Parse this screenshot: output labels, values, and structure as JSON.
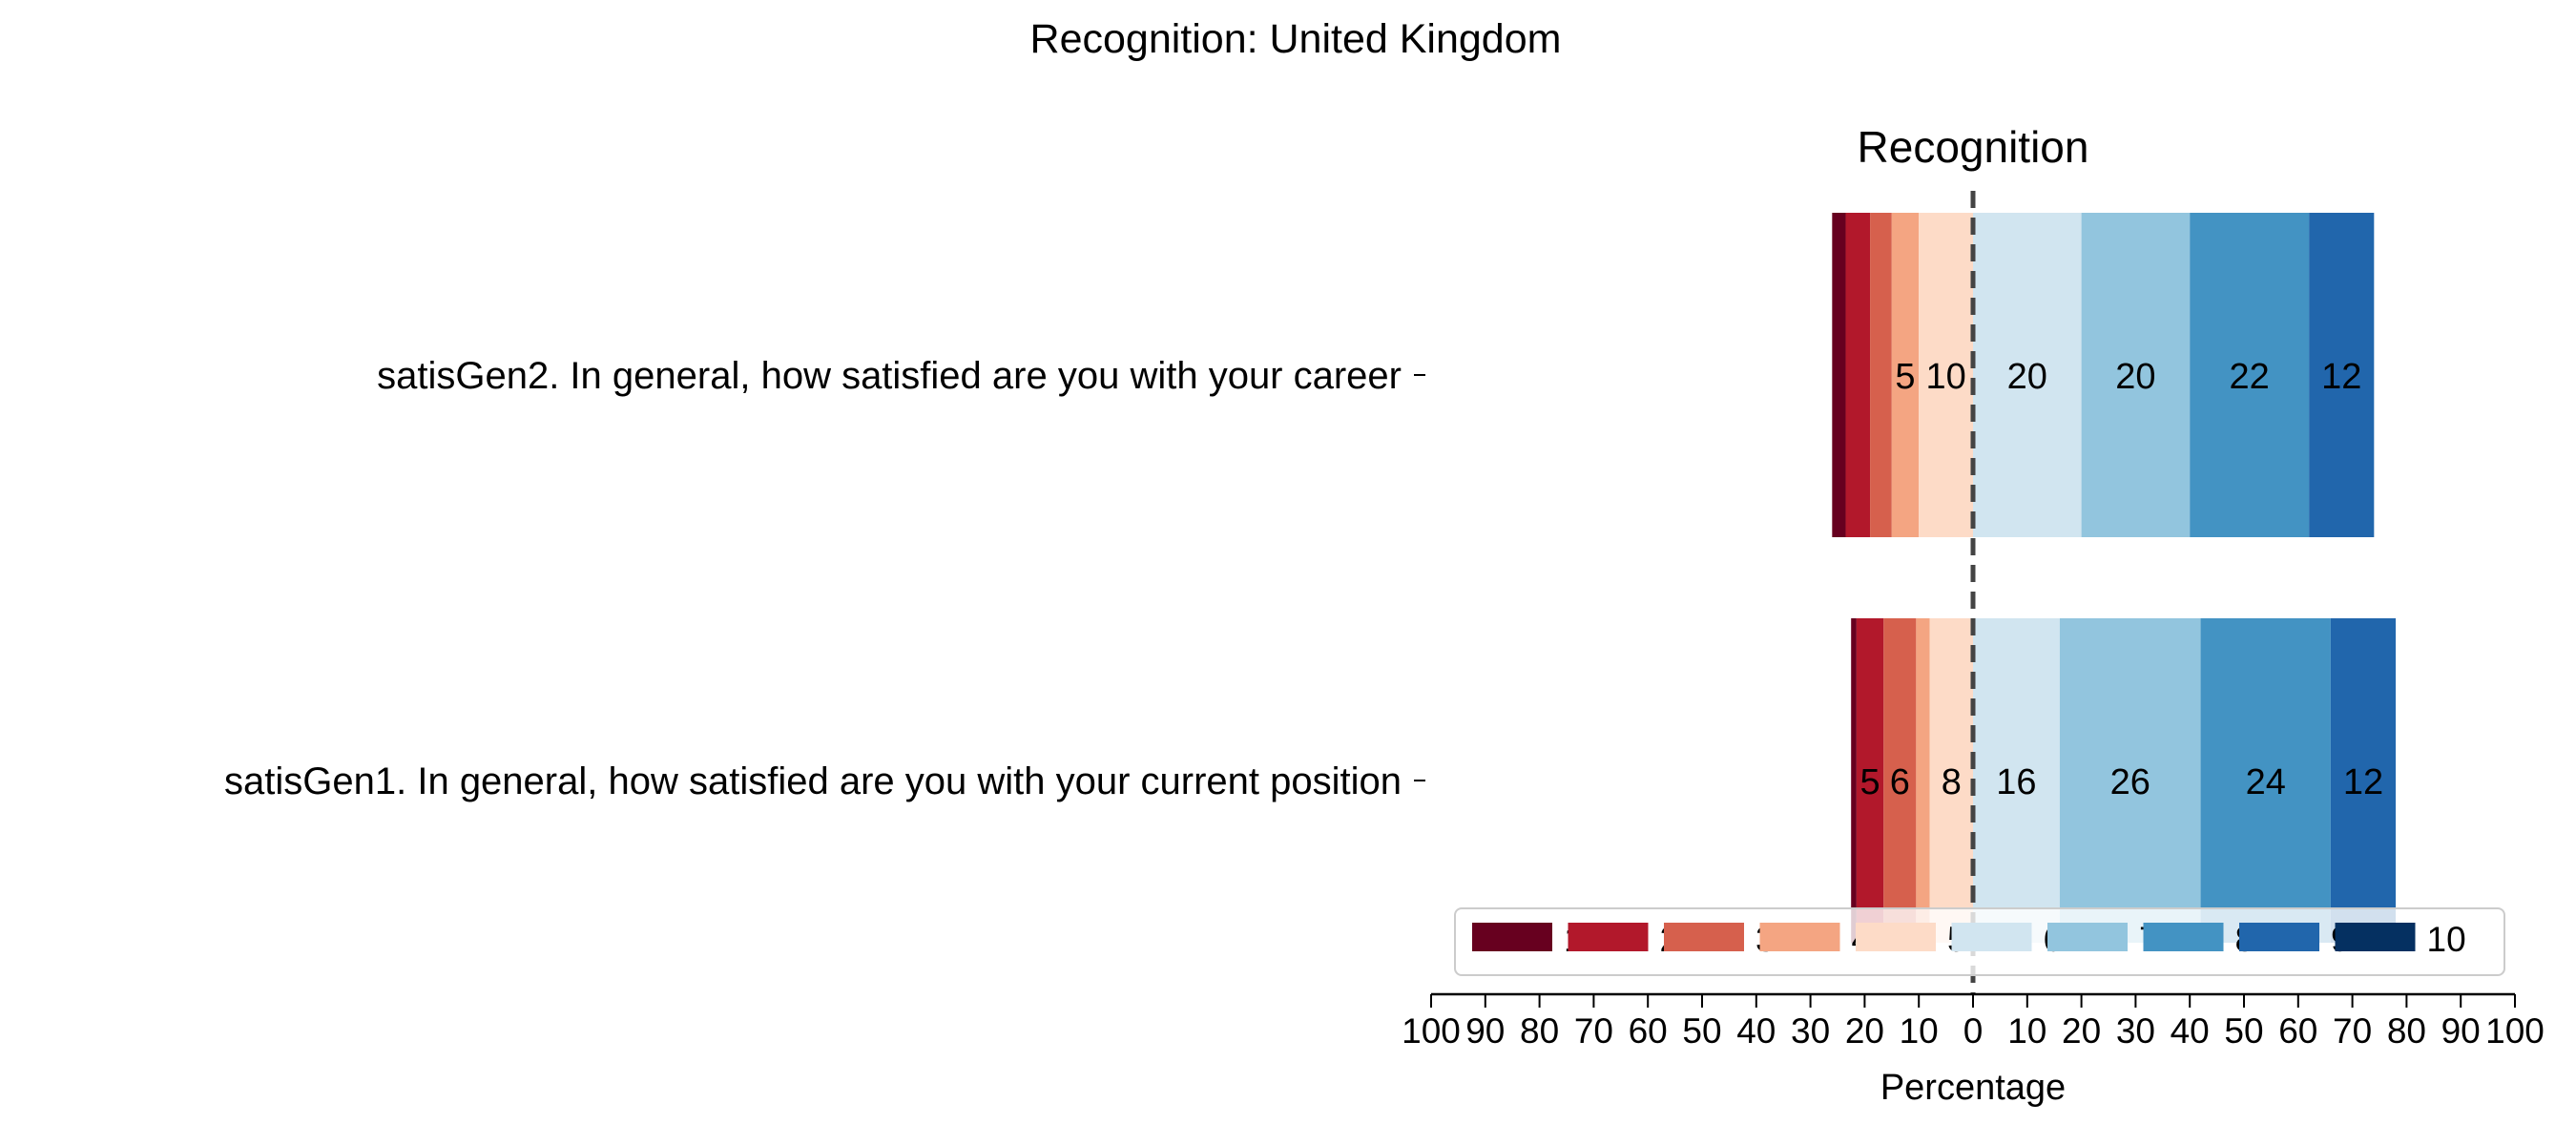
{
  "chart_data": {
    "type": "bar",
    "orientation": "horizontal",
    "stacked": "diverging",
    "title": "Recognition: United Kingdom",
    "subtitle": "Recognition",
    "xlabel": "Percentage",
    "xlim": [
      -100,
      100
    ],
    "x_ticks": [
      -100,
      -90,
      -80,
      -70,
      -60,
      -50,
      -40,
      -30,
      -20,
      -10,
      0,
      10,
      20,
      30,
      40,
      50,
      60,
      70,
      80,
      90,
      100
    ],
    "x_tick_labels": [
      "100",
      "90",
      "80",
      "70",
      "60",
      "50",
      "40",
      "30",
      "20",
      "10",
      "0",
      "10",
      "20",
      "30",
      "40",
      "50",
      "60",
      "70",
      "80",
      "90",
      "100"
    ],
    "categories": [
      "satisGen2. In general, how satisfied are you with your career",
      "satisGen1. In general, how satisfied are you with your current position"
    ],
    "series": [
      {
        "name": "1",
        "color": "#67001f",
        "values": [
          2.5,
          1
        ]
      },
      {
        "name": "2",
        "color": "#b2182b",
        "values": [
          4.5,
          5
        ]
      },
      {
        "name": "3",
        "color": "#d6604d",
        "values": [
          4,
          6
        ]
      },
      {
        "name": "4",
        "color": "#f4a582",
        "values": [
          5,
          2.5
        ]
      },
      {
        "name": "5",
        "color": "#fddbc7",
        "values": [
          10,
          8
        ]
      },
      {
        "name": "6",
        "color": "#d1e5f0",
        "values": [
          20,
          16
        ]
      },
      {
        "name": "7",
        "color": "#92c5de",
        "values": [
          20,
          26
        ]
      },
      {
        "name": "8",
        "color": "#4393c3",
        "values": [
          22,
          24
        ]
      },
      {
        "name": "9",
        "color": "#2166ac",
        "values": [
          12,
          12
        ]
      },
      {
        "name": "10",
        "color": "#053061",
        "values": [
          0,
          0
        ]
      }
    ],
    "negative_series_count": 5,
    "label_min_value": 5,
    "center_line": {
      "value": 0,
      "style": "dashed",
      "color": "#444444"
    },
    "legend": {
      "position": "bottom-right-overlay",
      "ncol": 10
    },
    "grid": false
  }
}
